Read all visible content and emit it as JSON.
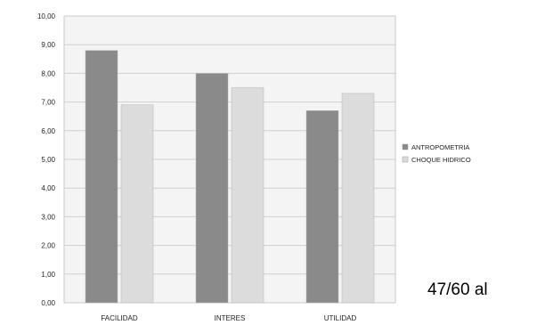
{
  "chart_data": {
    "type": "bar",
    "categories": [
      "FACILIDAD",
      "INTERES",
      "UTILIDAD"
    ],
    "series": [
      {
        "name": "ANTROPOMETRIA",
        "values": [
          8.8,
          8.0,
          6.7
        ],
        "color": "#8a8a8a"
      },
      {
        "name": "CHOQUE HIDRICO",
        "values": [
          6.9,
          7.5,
          7.3
        ],
        "color": "#dcdcdc"
      }
    ],
    "yticks": [
      "0,00",
      "1,00",
      "2,00",
      "3,00",
      "4,00",
      "5,00",
      "6,00",
      "7,00",
      "8,00",
      "9,00",
      "10,00"
    ],
    "ylim": [
      0,
      10
    ],
    "grid": true,
    "legend_position": "right",
    "title": "",
    "xlabel": "",
    "ylabel": ""
  },
  "footer": {
    "page_label": "47/60 al"
  }
}
